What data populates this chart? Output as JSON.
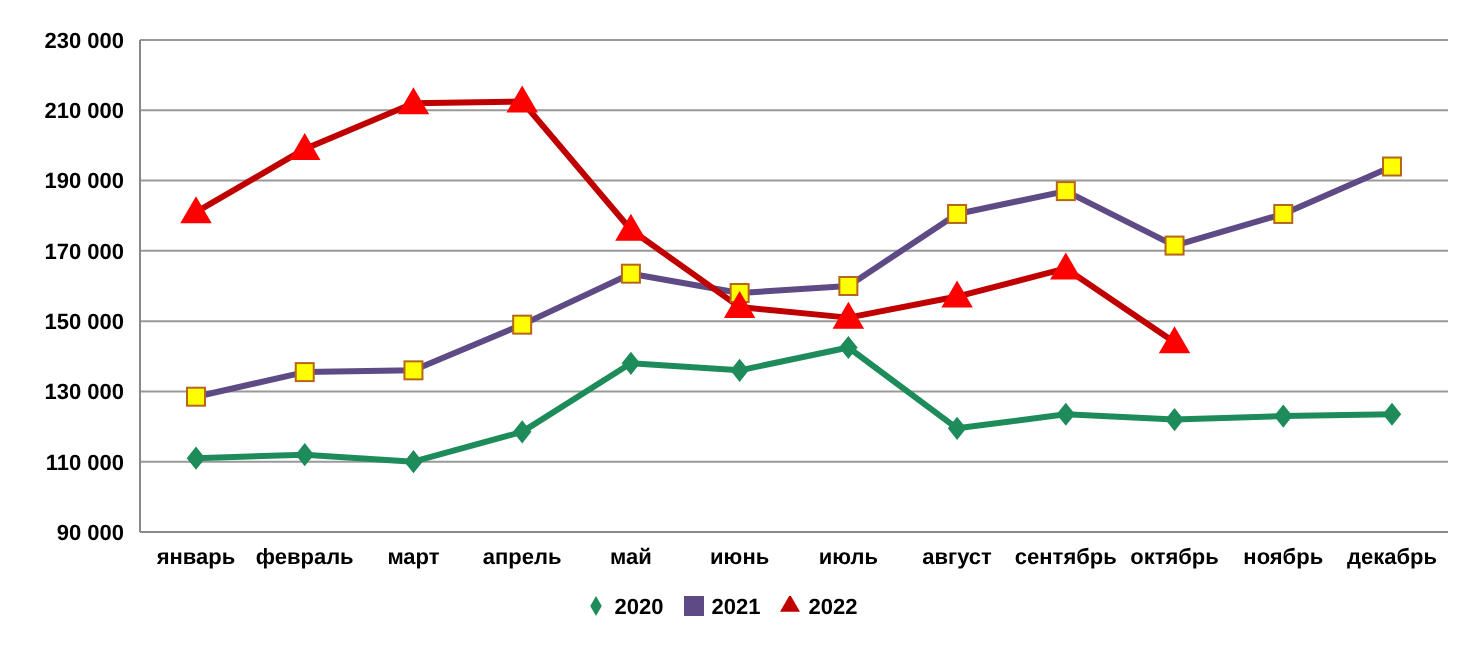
{
  "chart_data": {
    "type": "line",
    "categories": [
      "январь",
      "февраль",
      "март",
      "апрель",
      "май",
      "июнь",
      "июль",
      "август",
      "сентябрь",
      "октябрь",
      "ноябрь",
      "декабрь"
    ],
    "series": [
      {
        "name": "2020",
        "color": "#1e8c5a",
        "marker": "diamond",
        "values": [
          111000,
          112000,
          110000,
          118500,
          138000,
          136000,
          142500,
          119500,
          123500,
          122000,
          123000,
          123500
        ]
      },
      {
        "name": "2021",
        "color": "#5e4a84",
        "marker": "square",
        "values": [
          128500,
          135500,
          136000,
          149000,
          163500,
          158000,
          160000,
          180500,
          187000,
          171500,
          180500,
          194000
        ]
      },
      {
        "name": "2022",
        "color": "#c00000",
        "marker": "triangle",
        "values": [
          181000,
          199000,
          212000,
          212500,
          176000,
          154000,
          151000,
          157000,
          165000,
          144000,
          null,
          null
        ]
      }
    ],
    "ylim": [
      90000,
      230000
    ],
    "yticks": [
      {
        "value": 90000,
        "label": "90 000"
      },
      {
        "value": 110000,
        "label": "110 000"
      },
      {
        "value": 130000,
        "label": "130 000"
      },
      {
        "value": 150000,
        "label": "150 000"
      },
      {
        "value": 170000,
        "label": "170 000"
      },
      {
        "value": 190000,
        "label": "190 000"
      },
      {
        "value": 210000,
        "label": "210 000"
      },
      {
        "value": 230000,
        "label": "230 000"
      }
    ],
    "grid": "y",
    "legend": "bottom"
  }
}
